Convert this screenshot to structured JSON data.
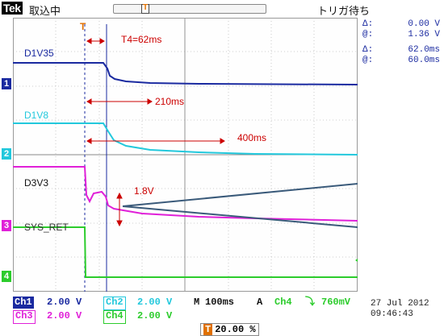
{
  "header": {
    "brand": "Tek",
    "acq_status": "取込中",
    "trigger_status": "トリガ待ち"
  },
  "traces": {
    "ch1_label": "D1V35",
    "ch2_label": "D1V8",
    "ch3_label": "D3V3",
    "ch4_label": "SYS_RET"
  },
  "annotations": {
    "t4": "T4=62ms",
    "t210": "210ms",
    "t400": "400ms",
    "v18": "1.8V"
  },
  "markers": {
    "ch1": "1",
    "ch2": "2",
    "ch3": "3",
    "ch4": "4",
    "trigger": "T"
  },
  "cursor_readout": {
    "dv_key": "Δ:",
    "dv_val": "0.00 V",
    "av_key": "@:",
    "av_val": "1.36 V",
    "dt_key": "Δ:",
    "dt_val": "62.0ms",
    "at_key": "@:",
    "at_val": "60.0ms"
  },
  "channels": {
    "ch1": {
      "name": "Ch1",
      "scale": "2.00 V"
    },
    "ch2": {
      "name": "Ch2",
      "scale": "2.00 V"
    },
    "ch3": {
      "name": "Ch3",
      "scale": "2.00 V"
    },
    "ch4": {
      "name": "Ch4",
      "scale": "2.00 V"
    }
  },
  "timebase": {
    "prefix": "M",
    "value": "100ms",
    "mode": "A",
    "trig_source": "Ch4",
    "trig_slope": "⤵",
    "trig_level": "760mV"
  },
  "position": {
    "percent": "20.00 %",
    "marker": "T"
  },
  "datetime": {
    "date": "27 Jul  2012",
    "time": "09:46:43"
  },
  "colors": {
    "ch1": "#1a2aa0",
    "ch2": "#22c8dc",
    "ch3": "#e020d8",
    "ch4": "#2ccc2c",
    "trigger": "#e07000",
    "annotation": "#cc0000"
  }
}
